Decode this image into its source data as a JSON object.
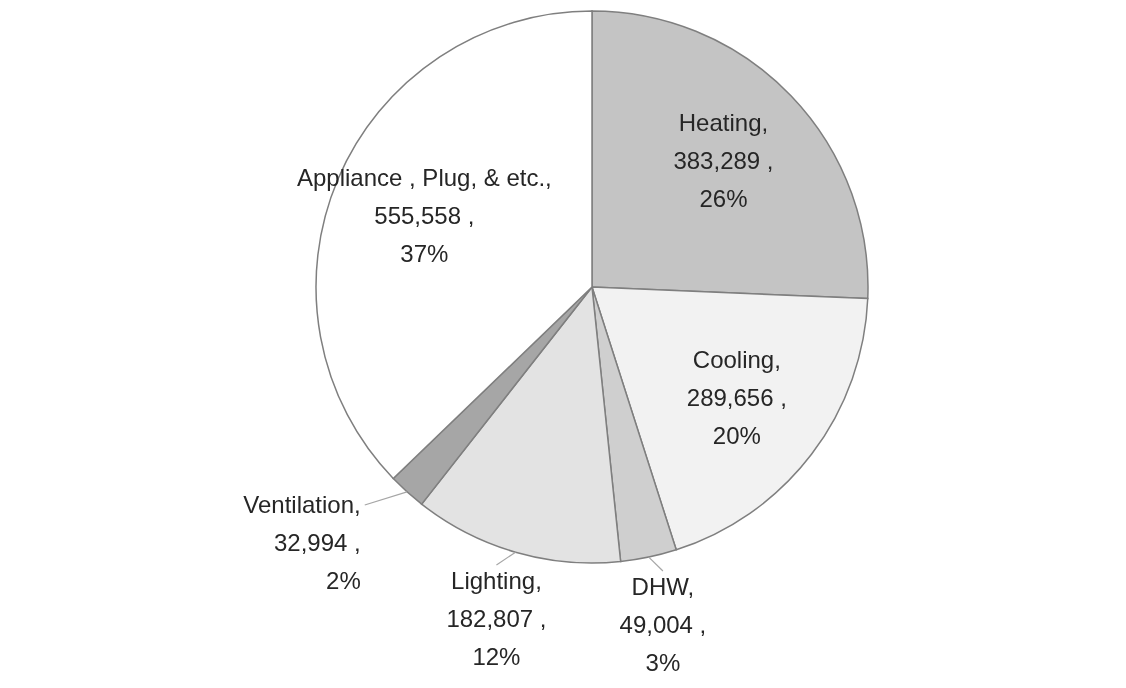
{
  "chart_data": {
    "type": "pie",
    "categories": [
      "Heating",
      "Cooling",
      "DHW",
      "Lighting",
      "Ventilation",
      "Appliance , Plug, & etc."
    ],
    "values": [
      383289,
      289656,
      49004,
      182807,
      32994,
      555558
    ],
    "colors": [
      "#c4c4c4",
      "#f2f2f2",
      "#cfcfcf",
      "#e3e3e3",
      "#a6a6a6",
      "#ffffff"
    ],
    "value_labels": [
      ", 383,289 , 26%",
      ", 289,656 , 20%",
      ", 49,004 , 3%",
      ", 182,807 , 12%",
      ", 32,994 , 2%",
      ", 555,558 , 37%"
    ]
  }
}
